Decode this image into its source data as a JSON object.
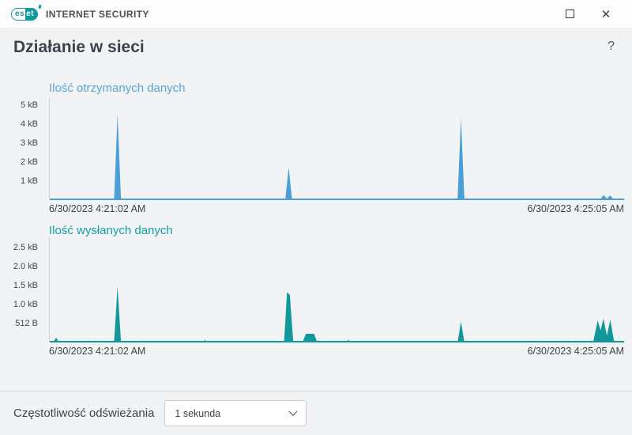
{
  "titlebar": {
    "logo_es": "es",
    "logo_et": "et",
    "app_title": "INTERNET SECURITY",
    "close_glyph": "✕"
  },
  "header": {
    "title": "Działanie w sieci",
    "help_glyph": "?"
  },
  "chart_data": [
    {
      "type": "area",
      "title": "Ilość otrzymanych danych",
      "color": "#4b9fd8",
      "title_color": "#5aa5da",
      "ylim": [
        0,
        5.35
      ],
      "yticks": [
        {
          "v": 5,
          "label": "5 kB"
        },
        {
          "v": 4,
          "label": "4 kB"
        },
        {
          "v": 3,
          "label": "3 kB"
        },
        {
          "v": 2,
          "label": "2 kB"
        },
        {
          "v": 1,
          "label": "1 kB"
        }
      ],
      "x_start_label": "6/30/2023 4:21:02 AM",
      "x_end_label": "6/30/2023 4:25:05 AM",
      "x_unit": "fraction-of-timespan",
      "y_unit": "kB",
      "points": [
        [
          0.0,
          0
        ],
        [
          0.112,
          0
        ],
        [
          0.118,
          4.55
        ],
        [
          0.124,
          0
        ],
        [
          0.232,
          0
        ],
        [
          0.238,
          0.1
        ],
        [
          0.244,
          0
        ],
        [
          0.28,
          0
        ],
        [
          0.284,
          0.05
        ],
        [
          0.288,
          0
        ],
        [
          0.41,
          0
        ],
        [
          0.416,
          1.72
        ],
        [
          0.422,
          0
        ],
        [
          0.516,
          0
        ],
        [
          0.52,
          0.05
        ],
        [
          0.524,
          0
        ],
        [
          0.71,
          0
        ],
        [
          0.716,
          4.33
        ],
        [
          0.722,
          0
        ],
        [
          0.856,
          0
        ],
        [
          0.86,
          0.05
        ],
        [
          0.864,
          0
        ],
        [
          0.958,
          0
        ],
        [
          0.964,
          0.27
        ],
        [
          0.97,
          0.08
        ],
        [
          0.976,
          0.25
        ],
        [
          0.982,
          0
        ],
        [
          1.0,
          0
        ]
      ]
    },
    {
      "type": "area",
      "title": "Ilość wysłanych danych",
      "color": "#12989a",
      "title_color": "#16a0a2",
      "ylim": [
        0,
        2.77
      ],
      "yticks": [
        {
          "v": 2.5,
          "label": "2.5 kB"
        },
        {
          "v": 2.0,
          "label": "2.0 kB"
        },
        {
          "v": 1.5,
          "label": "1.5 kB"
        },
        {
          "v": 1.0,
          "label": "1.0 kB"
        },
        {
          "v": 0.5,
          "label": "512 B"
        }
      ],
      "x_start_label": "6/30/2023 4:21:02 AM",
      "x_end_label": "6/30/2023 4:25:05 AM",
      "x_unit": "fraction-of-timespan",
      "y_unit": "kB",
      "points": [
        [
          0.0,
          0
        ],
        [
          0.006,
          0
        ],
        [
          0.011,
          0.13
        ],
        [
          0.016,
          0
        ],
        [
          0.112,
          0
        ],
        [
          0.118,
          1.47
        ],
        [
          0.124,
          0
        ],
        [
          0.266,
          0
        ],
        [
          0.27,
          0.07
        ],
        [
          0.274,
          0
        ],
        [
          0.408,
          0
        ],
        [
          0.413,
          1.32
        ],
        [
          0.418,
          1.25
        ],
        [
          0.424,
          0
        ],
        [
          0.44,
          0
        ],
        [
          0.446,
          0.23
        ],
        [
          0.46,
          0.23
        ],
        [
          0.466,
          0
        ],
        [
          0.516,
          0
        ],
        [
          0.52,
          0.07
        ],
        [
          0.524,
          0
        ],
        [
          0.71,
          0
        ],
        [
          0.716,
          0.55
        ],
        [
          0.722,
          0
        ],
        [
          0.84,
          0
        ],
        [
          0.844,
          0.05
        ],
        [
          0.848,
          0
        ],
        [
          0.946,
          0
        ],
        [
          0.954,
          0.58
        ],
        [
          0.959,
          0.32
        ],
        [
          0.964,
          0.63
        ],
        [
          0.97,
          0.18
        ],
        [
          0.976,
          0.6
        ],
        [
          0.983,
          0
        ],
        [
          1.0,
          0
        ]
      ]
    }
  ],
  "footer": {
    "label": "Częstotliwość odświeżania",
    "dropdown_value": "1 sekunda"
  }
}
